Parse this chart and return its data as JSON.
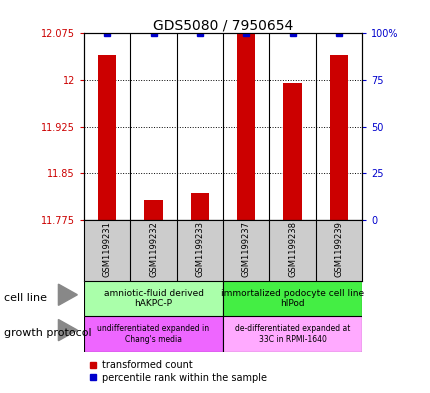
{
  "title": "GDS5080 / 7950654",
  "samples": [
    "GSM1199231",
    "GSM1199232",
    "GSM1199233",
    "GSM1199237",
    "GSM1199238",
    "GSM1199239"
  ],
  "red_values": [
    12.04,
    11.808,
    11.818,
    12.075,
    11.995,
    12.04
  ],
  "blue_values": [
    100,
    100,
    100,
    100,
    100,
    100
  ],
  "ylim_left": [
    11.775,
    12.075
  ],
  "ylim_right": [
    0,
    100
  ],
  "yticks_left": [
    11.775,
    11.85,
    11.925,
    12.0,
    12.075
  ],
  "yticks_right": [
    0,
    25,
    50,
    75,
    100
  ],
  "ytick_labels_left": [
    "11.775",
    "11.85",
    "11.925",
    "12",
    "12.075"
  ],
  "ytick_labels_right": [
    "0",
    "25",
    "50",
    "75",
    "100%"
  ],
  "red_color": "#cc0000",
  "blue_color": "#0000cc",
  "bar_width": 0.4,
  "cell_line_groups": [
    {
      "label": "amniotic-fluid derived\nhAKPC-P",
      "color": "#aaffaa"
    },
    {
      "label": "immortalized podocyte cell line\nhIPod",
      "color": "#44ee44"
    }
  ],
  "growth_protocol_groups": [
    {
      "label": "undifferentiated expanded in\nChang's media",
      "color": "#ee66ff"
    },
    {
      "label": "de-differentiated expanded at\n33C in RPMI-1640",
      "color": "#ffaaff"
    }
  ],
  "sample_bg_color": "#cccccc",
  "cell_line_label": "cell line",
  "growth_protocol_label": "growth protocol",
  "legend_red": "transformed count",
  "legend_blue": "percentile rank within the sample",
  "bg_color": "#ffffff"
}
